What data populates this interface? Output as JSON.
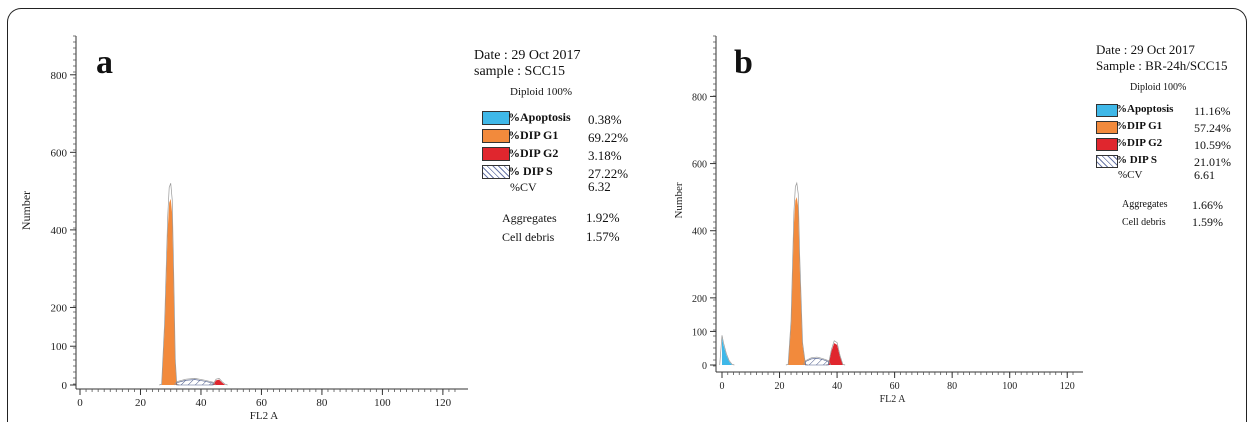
{
  "chart_data": [
    {
      "panel": "a",
      "type": "area",
      "xlabel": "FL2 A",
      "ylabel": "Number",
      "xlim": [
        0,
        125
      ],
      "ylim": [
        0,
        900
      ],
      "x_ticks": [
        0,
        20,
        40,
        60,
        80,
        100,
        120
      ],
      "y_ticks": [
        0,
        100,
        200,
        400,
        600,
        800
      ],
      "grid": false,
      "legend": "right",
      "series": [
        {
          "name": "%DIP G1",
          "color": "#f28a3c",
          "x": [
            27,
            28,
            29,
            29.5,
            30,
            30.5,
            31,
            31.5,
            32
          ],
          "y": [
            0,
            150,
            400,
            470,
            480,
            440,
            260,
            60,
            0
          ]
        },
        {
          "name": "%DIP G2",
          "color": "#e0262e",
          "x": [
            44,
            45,
            46,
            47,
            48
          ],
          "y": [
            0,
            12,
            14,
            6,
            0
          ]
        },
        {
          "name": "%DIP S",
          "color": "#9aa6c8",
          "x": [
            32,
            35,
            38,
            41,
            44
          ],
          "y": [
            6,
            12,
            14,
            10,
            5
          ]
        }
      ],
      "info": {
        "date": "Date : 29 Oct 2017",
        "sample": "sample : SCC15",
        "ploidy": "Diploid 100%",
        "legend": [
          {
            "name": "%Apoptosis",
            "value": "0.38%",
            "color": "#3fb8e8"
          },
          {
            "name": "%DIP G1",
            "value": "69.22%",
            "color": "#f28a3c"
          },
          {
            "name": "%DIP G2",
            "value": "3.18%",
            "color": "#e0262e"
          },
          {
            "name": "% DIP S",
            "value": "27.22%",
            "color": "#ffffff"
          }
        ],
        "cv_label": "%CV",
        "cv_value": "6.32",
        "aggregates_label": "Aggregates",
        "aggregates_value": "1.92%",
        "debris_label": "Cell debris",
        "debris_value": "1.57%"
      }
    },
    {
      "panel": "b",
      "type": "area",
      "xlabel": "FL2 A",
      "ylabel": "Number",
      "xlim": [
        0,
        122
      ],
      "ylim": [
        0,
        980
      ],
      "x_ticks": [
        0,
        20,
        40,
        60,
        80,
        100,
        120
      ],
      "y_ticks": [
        0,
        100,
        200,
        400,
        600,
        800
      ],
      "grid": false,
      "legend": "right",
      "series": [
        {
          "name": "%Apoptosis",
          "color": "#3fb8e8",
          "x": [
            0,
            0.5,
            1.5,
            2.5,
            3.5
          ],
          "y": [
            80,
            60,
            30,
            10,
            0
          ]
        },
        {
          "name": "%DIP G1",
          "color": "#f28a3c",
          "x": [
            23,
            24,
            25,
            25.5,
            26,
            26.5,
            27,
            28,
            29
          ],
          "y": [
            0,
            120,
            420,
            490,
            500,
            470,
            300,
            60,
            0
          ]
        },
        {
          "name": "%DIP G2",
          "color": "#e0262e",
          "x": [
            37,
            38,
            39,
            40,
            41,
            42
          ],
          "y": [
            0,
            40,
            65,
            60,
            25,
            0
          ]
        },
        {
          "name": "% DIP S",
          "color": "#9aa6c8",
          "x": [
            29,
            31,
            33,
            35,
            37
          ],
          "y": [
            10,
            18,
            20,
            16,
            10
          ]
        }
      ],
      "info": {
        "date": "Date : 29 Oct 2017",
        "sample": "Sample : BR-24h/SCC15",
        "ploidy": "Diploid 100%",
        "legend": [
          {
            "name": "%Apoptosis",
            "value": "11.16%",
            "color": "#3fb8e8"
          },
          {
            "name": "%DIP G1",
            "value": "57.24%",
            "color": "#f28a3c"
          },
          {
            "name": "%DIP G2",
            "value": "10.59%",
            "color": "#e0262e"
          },
          {
            "name": "% DIP S",
            "value": "21.01%",
            "color": "#ffffff"
          }
        ],
        "cv_label": "%CV",
        "cv_value": "6.61",
        "aggregates_label": "Aggregates",
        "aggregates_value": "1.66%",
        "debris_label": "Cell debris",
        "debris_value": "1.59%"
      }
    }
  ]
}
